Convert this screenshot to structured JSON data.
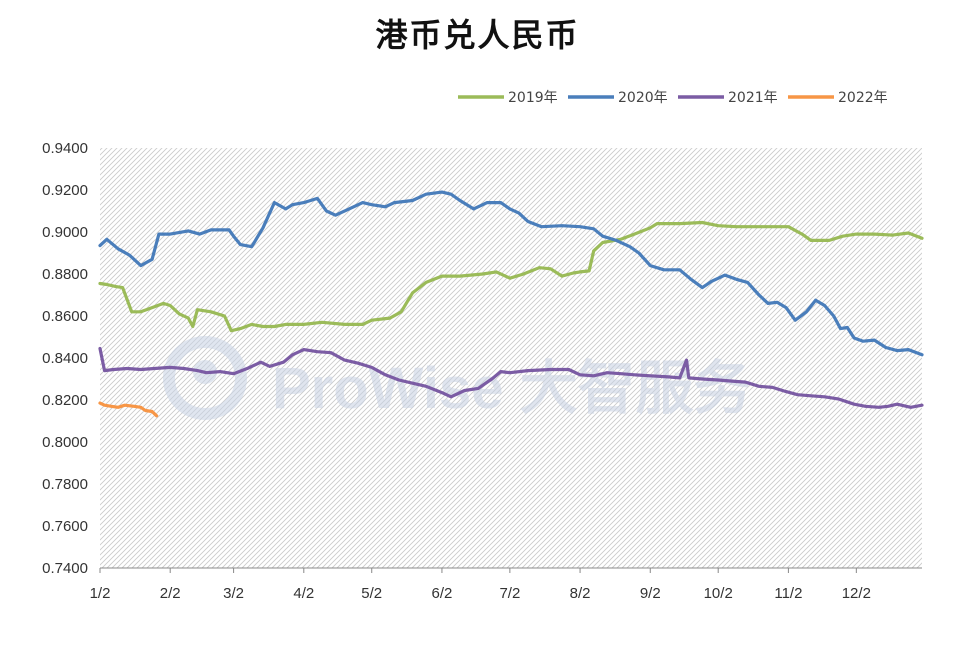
{
  "chart_data": {
    "type": "line",
    "title": "港币兑人民币",
    "xlabel": "",
    "ylabel": "",
    "x_tick_labels": [
      "1/2",
      "2/2",
      "3/2",
      "4/2",
      "5/2",
      "6/2",
      "7/2",
      "8/2",
      "9/2",
      "10/2",
      "11/2",
      "12/2"
    ],
    "y_tick_labels": [
      "0.9400",
      "0.9200",
      "0.9000",
      "0.8800",
      "0.8600",
      "0.8400",
      "0.8200",
      "0.8000",
      "0.7800",
      "0.7600",
      "0.7400"
    ],
    "ylim": [
      0.74,
      0.94
    ],
    "legend_position": "top-right",
    "watermark": "ProWise 大智服务",
    "series": [
      {
        "name": "2019年",
        "color": "#9bbb59",
        "points": [
          [
            "1/2",
            0.8755
          ],
          [
            "1/5",
            0.875
          ],
          [
            "1/9",
            0.874
          ],
          [
            "1/12",
            0.8735
          ],
          [
            "1/16",
            0.862
          ],
          [
            "1/20",
            0.862
          ],
          [
            "1/25",
            0.864
          ],
          [
            "1/30",
            0.866
          ],
          [
            "2/2",
            0.865
          ],
          [
            "2/6",
            0.861
          ],
          [
            "2/10",
            0.859
          ],
          [
            "2/12",
            0.855
          ],
          [
            "2/14",
            0.863
          ],
          [
            "2/20",
            0.862
          ],
          [
            "2/26",
            0.86
          ],
          [
            "3/1",
            0.853
          ],
          [
            "3/5",
            0.854
          ],
          [
            "3/10",
            0.856
          ],
          [
            "3/15",
            0.855
          ],
          [
            "3/20",
            0.855
          ],
          [
            "3/25",
            0.856
          ],
          [
            "4/2",
            0.856
          ],
          [
            "4/10",
            0.857
          ],
          [
            "4/20",
            0.856
          ],
          [
            "4/28",
            0.856
          ],
          [
            "5/2",
            0.858
          ],
          [
            "5/10",
            0.859
          ],
          [
            "5/15",
            0.862
          ],
          [
            "5/20",
            0.871
          ],
          [
            "5/26",
            0.876
          ],
          [
            "6/2",
            0.879
          ],
          [
            "6/10",
            0.879
          ],
          [
            "6/20",
            0.88
          ],
          [
            "6/26",
            0.881
          ],
          [
            "7/2",
            0.878
          ],
          [
            "7/8",
            0.88
          ],
          [
            "7/15",
            0.883
          ],
          [
            "7/20",
            0.8825
          ],
          [
            "7/25",
            0.879
          ],
          [
            "7/30",
            0.8805
          ],
          [
            "8/2",
            0.881
          ],
          [
            "8/6",
            0.8815
          ],
          [
            "8/8",
            0.891
          ],
          [
            "8/12",
            0.895
          ],
          [
            "8/20",
            0.8965
          ],
          [
            "8/26",
            0.899
          ],
          [
            "9/2",
            0.902
          ],
          [
            "9/5",
            0.904
          ],
          [
            "9/15",
            0.904
          ],
          [
            "9/25",
            0.9045
          ],
          [
            "10/2",
            0.903
          ],
          [
            "10/10",
            0.9025
          ],
          [
            "10/20",
            0.9025
          ],
          [
            "10/29",
            0.9025
          ],
          [
            "11/2",
            0.9025
          ],
          [
            "11/8",
            0.899
          ],
          [
            "11/12",
            0.896
          ],
          [
            "11/20",
            0.896
          ],
          [
            "11/26",
            0.898
          ],
          [
            "12/2",
            0.899
          ],
          [
            "12/10",
            0.899
          ],
          [
            "12/18",
            0.8985
          ],
          [
            "12/25",
            0.8995
          ],
          [
            "12/31",
            0.897
          ]
        ]
      },
      {
        "name": "2020年",
        "color": "#4a7ebb",
        "points": [
          [
            "1/2",
            0.8935
          ],
          [
            "1/5",
            0.8965
          ],
          [
            "1/10",
            0.892
          ],
          [
            "1/15",
            0.889
          ],
          [
            "1/20",
            0.884
          ],
          [
            "1/25",
            0.887
          ],
          [
            "1/28",
            0.899
          ],
          [
            "2/2",
            0.899
          ],
          [
            "2/10",
            0.9005
          ],
          [
            "2/15",
            0.899
          ],
          [
            "2/20",
            0.901
          ],
          [
            "2/28",
            0.901
          ],
          [
            "3/2",
            0.898
          ],
          [
            "3/5",
            0.894
          ],
          [
            "3/10",
            0.893
          ],
          [
            "3/15",
            0.902
          ],
          [
            "3/20",
            0.914
          ],
          [
            "3/25",
            0.911
          ],
          [
            "3/28",
            0.913
          ],
          [
            "4/2",
            0.914
          ],
          [
            "4/8",
            0.916
          ],
          [
            "4/12",
            0.91
          ],
          [
            "4/16",
            0.908
          ],
          [
            "4/22",
            0.911
          ],
          [
            "4/28",
            0.914
          ],
          [
            "5/2",
            0.913
          ],
          [
            "5/8",
            0.912
          ],
          [
            "5/12",
            0.914
          ],
          [
            "5/20",
            0.915
          ],
          [
            "5/26",
            0.918
          ],
          [
            "6/2",
            0.919
          ],
          [
            "6/6",
            0.918
          ],
          [
            "6/10",
            0.915
          ],
          [
            "6/16",
            0.911
          ],
          [
            "6/22",
            0.914
          ],
          [
            "6/28",
            0.914
          ],
          [
            "7/2",
            0.911
          ],
          [
            "7/6",
            0.909
          ],
          [
            "7/10",
            0.905
          ],
          [
            "7/16",
            0.9025
          ],
          [
            "7/25",
            0.903
          ],
          [
            "8/2",
            0.9025
          ],
          [
            "8/8",
            0.9015
          ],
          [
            "8/12",
            0.898
          ],
          [
            "8/18",
            0.896
          ],
          [
            "8/24",
            0.893
          ],
          [
            "8/28",
            0.89
          ],
          [
            "9/2",
            0.884
          ],
          [
            "9/8",
            0.882
          ],
          [
            "9/15",
            0.882
          ],
          [
            "9/20",
            0.8775
          ],
          [
            "9/25",
            0.8735
          ],
          [
            "9/29",
            0.8765
          ],
          [
            "10/5",
            0.8795
          ],
          [
            "10/10",
            0.8775
          ],
          [
            "10/15",
            0.876
          ],
          [
            "10/20",
            0.87
          ],
          [
            "10/24",
            0.866
          ],
          [
            "10/28",
            0.8665
          ],
          [
            "11/1",
            0.864
          ],
          [
            "11/5",
            0.858
          ],
          [
            "11/10",
            0.862
          ],
          [
            "11/14",
            0.8675
          ],
          [
            "11/18",
            0.865
          ],
          [
            "11/22",
            0.86
          ],
          [
            "11/25",
            0.854
          ],
          [
            "11/28",
            0.8545
          ],
          [
            "12/1",
            0.8495
          ],
          [
            "12/5",
            0.848
          ],
          [
            "12/10",
            0.8485
          ],
          [
            "12/15",
            0.845
          ],
          [
            "12/20",
            0.8435
          ],
          [
            "12/25",
            0.844
          ],
          [
            "12/31",
            0.8415
          ]
        ]
      },
      {
        "name": "2021年",
        "color": "#7b5ca4",
        "points": [
          [
            "1/2",
            0.8445
          ],
          [
            "1/4",
            0.834
          ],
          [
            "1/8",
            0.8345
          ],
          [
            "1/14",
            0.835
          ],
          [
            "1/20",
            0.8345
          ],
          [
            "1/26",
            0.835
          ],
          [
            "2/2",
            0.8355
          ],
          [
            "2/8",
            0.835
          ],
          [
            "2/14",
            0.834
          ],
          [
            "2/18",
            0.833
          ],
          [
            "2/24",
            0.8335
          ],
          [
            "3/2",
            0.8325
          ],
          [
            "3/8",
            0.835
          ],
          [
            "3/14",
            0.838
          ],
          [
            "3/18",
            0.836
          ],
          [
            "3/24",
            0.838
          ],
          [
            "3/28",
            0.8415
          ],
          [
            "4/2",
            0.844
          ],
          [
            "4/8",
            0.843
          ],
          [
            "4/14",
            0.8425
          ],
          [
            "4/20",
            0.839
          ],
          [
            "4/26",
            0.8375
          ],
          [
            "5/2",
            0.8355
          ],
          [
            "5/8",
            0.832
          ],
          [
            "5/14",
            0.8295
          ],
          [
            "5/20",
            0.828
          ],
          [
            "5/26",
            0.8265
          ],
          [
            "6/2",
            0.8235
          ],
          [
            "6/6",
            0.8215
          ],
          [
            "6/12",
            0.8245
          ],
          [
            "6/18",
            0.8255
          ],
          [
            "6/24",
            0.83
          ],
          [
            "6/28",
            0.8335
          ],
          [
            "7/2",
            0.833
          ],
          [
            "7/10",
            0.834
          ],
          [
            "7/20",
            0.8345
          ],
          [
            "7/28",
            0.8345
          ],
          [
            "8/2",
            0.832
          ],
          [
            "8/8",
            0.8315
          ],
          [
            "8/14",
            0.833
          ],
          [
            "8/20",
            0.8325
          ],
          [
            "8/26",
            0.832
          ],
          [
            "9/2",
            0.8315
          ],
          [
            "9/10",
            0.831
          ],
          [
            "9/15",
            0.8305
          ],
          [
            "9/18",
            0.839
          ],
          [
            "9/19",
            0.8305
          ],
          [
            "9/25",
            0.83
          ],
          [
            "10/2",
            0.8295
          ],
          [
            "10/8",
            0.829
          ],
          [
            "10/14",
            0.8285
          ],
          [
            "10/20",
            0.8265
          ],
          [
            "10/26",
            0.826
          ],
          [
            "11/1",
            0.824
          ],
          [
            "11/6",
            0.8225
          ],
          [
            "11/12",
            0.822
          ],
          [
            "11/18",
            0.8215
          ],
          [
            "11/24",
            0.8205
          ],
          [
            "12/1",
            0.818
          ],
          [
            "12/6",
            0.817
          ],
          [
            "12/12",
            0.8165
          ],
          [
            "12/16",
            0.817
          ],
          [
            "12/20",
            0.818
          ],
          [
            "12/26",
            0.8165
          ],
          [
            "12/31",
            0.8175
          ]
        ]
      },
      {
        "name": "2022年",
        "color": "#f79646",
        "points": [
          [
            "1/2",
            0.8185
          ],
          [
            "1/4",
            0.8175
          ],
          [
            "1/7",
            0.817
          ],
          [
            "1/10",
            0.8165
          ],
          [
            "1/13",
            0.8175
          ],
          [
            "1/17",
            0.817
          ],
          [
            "1/20",
            0.8165
          ],
          [
            "1/22",
            0.815
          ],
          [
            "1/25",
            0.8145
          ],
          [
            "1/27",
            0.8125
          ]
        ]
      }
    ]
  }
}
